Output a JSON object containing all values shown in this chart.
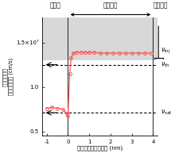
{
  "title_source": "ソース",
  "title_channel": "チャネル",
  "title_drain": "ドレイン",
  "xlabel": "チャネル内部の位置 (nm)",
  "ylabel_line1": "解析で求めた",
  "ylabel_line2": "キャリア速度 (cm/s)",
  "ylim": [
    4500000.0,
    17800000.0
  ],
  "xlim": [
    -1.2,
    4.2
  ],
  "v_th": 12500000.0,
  "v_sat": 7100000.0,
  "v_inj_y": 14000000.0,
  "gray_region_ymin": 13000000.0,
  "gray_region_ymax": 17800000.0,
  "line_color": "#ff5555",
  "marker_facecolor": "none",
  "marker_edgecolor": "#ff5555",
  "gray_color": "#d8d8d8",
  "data_x": [
    -1.0,
    -0.75,
    -0.5,
    -0.25,
    -0.05,
    0.0,
    0.08,
    0.15,
    0.25,
    0.4,
    0.6,
    0.8,
    1.0,
    1.2,
    1.5,
    1.8,
    2.1,
    2.4,
    2.7,
    3.0,
    3.3,
    3.6,
    3.9
  ],
  "data_y": [
    7600000.0,
    7700000.0,
    7600000.0,
    7500000.0,
    7000000.0,
    6800000.0,
    11500000.0,
    13300000.0,
    13800000.0,
    13900000.0,
    13900000.0,
    13900000.0,
    13900000.0,
    13900000.0,
    13800000.0,
    13800000.0,
    13800000.0,
    13800000.0,
    13800000.0,
    13800000.0,
    13800000.0,
    13800000.0,
    13800000.0
  ],
  "yticks": [
    5000000.0,
    10000000.0,
    15000000.0
  ],
  "ytick_labels": [
    "0.5",
    "1.0",
    "1.5×10⁷"
  ],
  "xticks": [
    -1,
    0,
    1,
    2,
    3,
    4
  ],
  "xtick_labels": [
    "-1",
    "0",
    "1",
    "2",
    "3",
    "4"
  ]
}
